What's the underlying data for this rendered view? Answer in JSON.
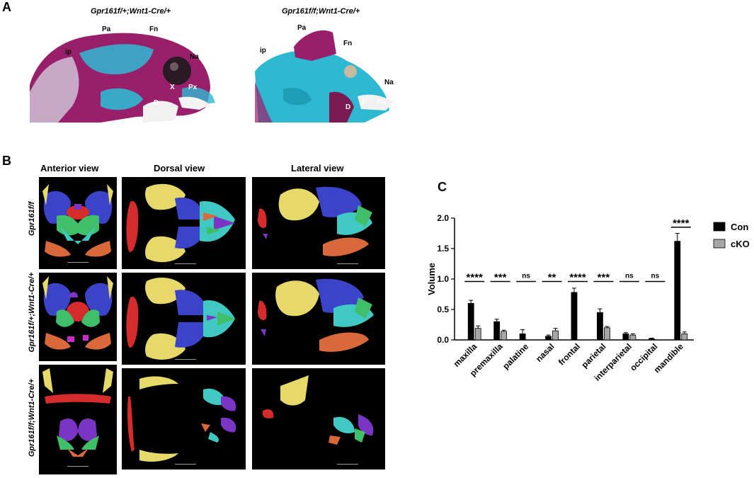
{
  "panelA": {
    "letter": "A",
    "left_genotype": "Gpr161f/+;Wnt1-Cre/+",
    "right_genotype": "Gpr161f/f;Wnt1-Cre/+",
    "left_labels": {
      "ip": "ip",
      "pa": "Pa",
      "fn": "Fn",
      "na": "Na",
      "x": "X",
      "px": "Px",
      "d": "D"
    },
    "right_labels": {
      "ip": "ip",
      "pa": "Pa",
      "fn": "Fn",
      "na": "Na",
      "x": "X",
      "px": "Px",
      "d": "D"
    }
  },
  "panelB": {
    "letter": "B",
    "views": [
      "Anterior view",
      "Dorsal view",
      "Lateral view"
    ],
    "rows": [
      "Gpr161f/f",
      "Gpr161f/+;Wnt1-Cre/+",
      "Gpr161f/f;Wnt1-Cre/+"
    ]
  },
  "panelC": {
    "letter": "C"
  },
  "colors": {
    "con": "#000000",
    "cko": "#a6a6a6",
    "skin_magenta": "#9a1f6a",
    "cartilage_cyan": "#2fb8d2",
    "bone_yellow": "#e6d96a",
    "bone_blue": "#3b43c9",
    "bone_red": "#d62b2b",
    "bone_green": "#3fbf6a",
    "bone_orange": "#d9683a",
    "bone_purple": "#7b35c4",
    "bone_teal": "#3fc9c2"
  },
  "chart_data": {
    "type": "bar",
    "ylabel": "Volume",
    "ylim": [
      0,
      2.0
    ],
    "yticks": [
      "0.0",
      "0.5",
      "1.0",
      "1.5",
      "2.0"
    ],
    "legend": "right",
    "categories": [
      "maxilla",
      "premaxilla",
      "palatine",
      "nasal",
      "frontal",
      "parietal",
      "interparietal",
      "occipital",
      "mandible"
    ],
    "series": [
      {
        "name": "Con",
        "values": [
          0.6,
          0.3,
          0.1,
          0.06,
          0.78,
          0.45,
          0.1,
          0.02,
          1.62
        ],
        "errors": [
          0.05,
          0.04,
          0.07,
          0.02,
          0.07,
          0.06,
          0.02,
          0.01,
          0.13
        ]
      },
      {
        "name": "cKO",
        "values": [
          0.19,
          0.14,
          0.0,
          0.15,
          0.0,
          0.2,
          0.08,
          0.0,
          0.1
        ],
        "errors": [
          0.04,
          0.02,
          0.0,
          0.04,
          0.0,
          0.02,
          0.02,
          0.0,
          0.03
        ]
      }
    ],
    "significance": [
      "****",
      "***",
      "ns",
      "**",
      "****",
      "***",
      "ns",
      "ns",
      "****"
    ]
  }
}
